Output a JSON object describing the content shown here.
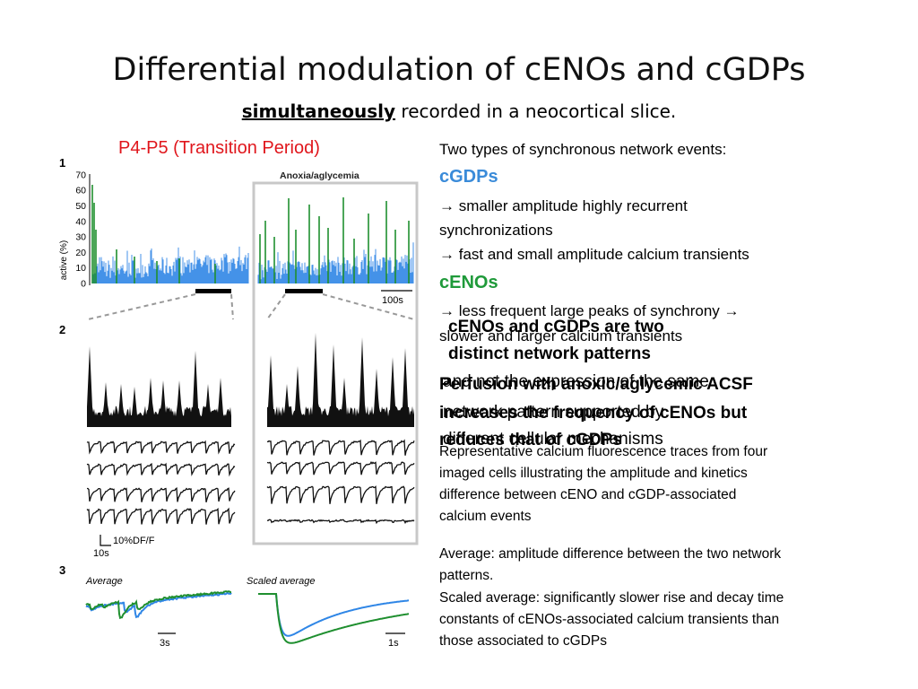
{
  "slide": {
    "title": "Differential modulation of cENOs and cGDPs",
    "subtitle_emph": "simultaneously",
    "subtitle_rest": " recorded in a neocortical slice."
  },
  "figure": {
    "heading": "P4-P5 (Transition Period)",
    "panel_numbers": [
      "1",
      "2",
      "3"
    ],
    "y_axis_label": "active (%)",
    "y_ticks": [
      "0",
      "10",
      "20",
      "30",
      "40",
      "50",
      "60",
      "70"
    ],
    "anoxia_label": "Anoxia/aglycemia",
    "scalebar_100s": "100s",
    "scalebar_df": "10%DF/F",
    "scalebar_10s": "10s",
    "average_label": "Average",
    "scaled_average_label": "Scaled average",
    "scalebar_3s": "3s",
    "scalebar_1s": "1s",
    "colors": {
      "cgdp": "#2f86e6",
      "ceno": "#1f8f2f",
      "frame": "#c8c8c8",
      "heading": "#e0161c"
    }
  },
  "right_text": {
    "intro": "Two types of synchronous network events:",
    "cgdps_heading": "cGDPs",
    "cgdps_line1": " → smaller amplitude highly recurrent",
    "cgdps_line2": "synchronizations",
    "cgdps_line3": "→ fast and small amplitude calcium transients",
    "cenos_heading": "cENOs",
    "cenos_line1": "→ less frequent large peaks of synchrony →",
    "cenos_line2": "slower and larger calcium transients",
    "overlap_bold_1": "cENOs and cGDPs are two",
    "overlap_bold_2": "distinct network patterns",
    "overlap_normal_1": "and not the expression of the same",
    "overlap_normal_2": "network pattern supported by",
    "overlap_normal_3": "different cellular mechanisms",
    "perfusion_1": "Perfusion with anoxic/aglycemic ACSF",
    "perfusion_2": "increases the frequency of cENOs but",
    "perfusion_3": "reduces that of cGDPs",
    "representative_1": "Representative calcium fluorescence traces from four",
    "representative_2": "imaged cells illustrating the amplitude and kinetics",
    "representative_3": "difference between cENO and cGDP-associated",
    "representative_4": "calcium events",
    "average_1": "Average: amplitude difference between the two network",
    "average_2": "patterns.",
    "scaled_1": "Scaled average: significantly slower rise and decay time",
    "scaled_2": "constants of cENOs-associated calcium transients than",
    "scaled_3": "those associated to cGDPs"
  }
}
